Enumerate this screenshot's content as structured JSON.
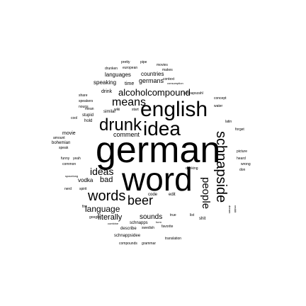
{
  "words": [
    "german",
    "word",
    "english",
    "idea",
    "drunk",
    "words",
    "means",
    "beer",
    "schnapside",
    "people",
    "alcoholcompound",
    "ideas",
    "language",
    "literally",
    "sounds",
    "comment",
    "bad",
    "vodka",
    "movie",
    "drink",
    "languages",
    "countries",
    "speaking",
    "time",
    "germans",
    "pretty",
    "pipe",
    "movies",
    "drunken",
    "european",
    "makes",
    "context",
    "consumption",
    "schnapszahl",
    "speakers",
    "nouns",
    "similar",
    "stupid",
    "hold",
    "bohemian",
    "speak",
    "funny",
    "yeah",
    "common",
    "spacelong",
    "translation",
    "compounds",
    "grammar",
    "schnappsidee",
    "describe",
    "swedish",
    "favorite",
    "google",
    "schnapps",
    "code",
    "edit",
    "drinking",
    "picture",
    "heard",
    "wrong",
    "water",
    "latin",
    "forget",
    "concept",
    "spirit",
    "nerd",
    "amount",
    "mean",
    "start",
    "fire",
    "true",
    "list",
    "wiki",
    "don",
    "shit",
    "dream",
    "reddit",
    "share",
    "cool",
    "combine",
    "form"
  ]
}
